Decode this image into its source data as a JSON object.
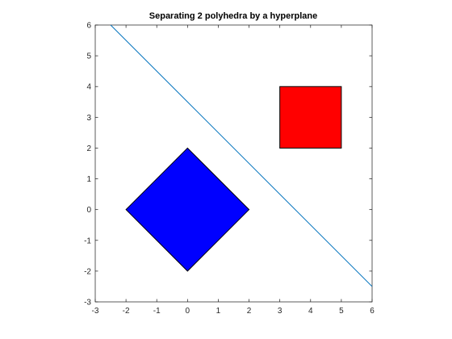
{
  "chart_data": {
    "type": "scatter",
    "title": "Separating 2 polyhedra by a hyperplane",
    "xlabel": "",
    "ylabel": "",
    "xlim": [
      -3,
      6
    ],
    "ylim": [
      -3,
      6
    ],
    "xticks": [
      "-3",
      "-2",
      "-1",
      "0",
      "1",
      "2",
      "3",
      "4",
      "5",
      "6"
    ],
    "yticks": [
      "-3",
      "-2",
      "-1",
      "0",
      "1",
      "2",
      "3",
      "4",
      "5",
      "6"
    ],
    "grid": false,
    "polygons": [
      {
        "fill": "#0000ff",
        "stroke": "#000000",
        "x": [
          0,
          2,
          0,
          -2
        ],
        "y": [
          2,
          0,
          -2,
          0
        ]
      },
      {
        "fill": "#ff0000",
        "stroke": "#000000",
        "x": [
          3,
          5,
          5,
          3
        ],
        "y": [
          2,
          2,
          4,
          4
        ]
      }
    ],
    "series": [
      {
        "color": "#0072bd",
        "x": [
          -2.5,
          6
        ],
        "y": [
          6,
          -2.5
        ]
      }
    ]
  }
}
